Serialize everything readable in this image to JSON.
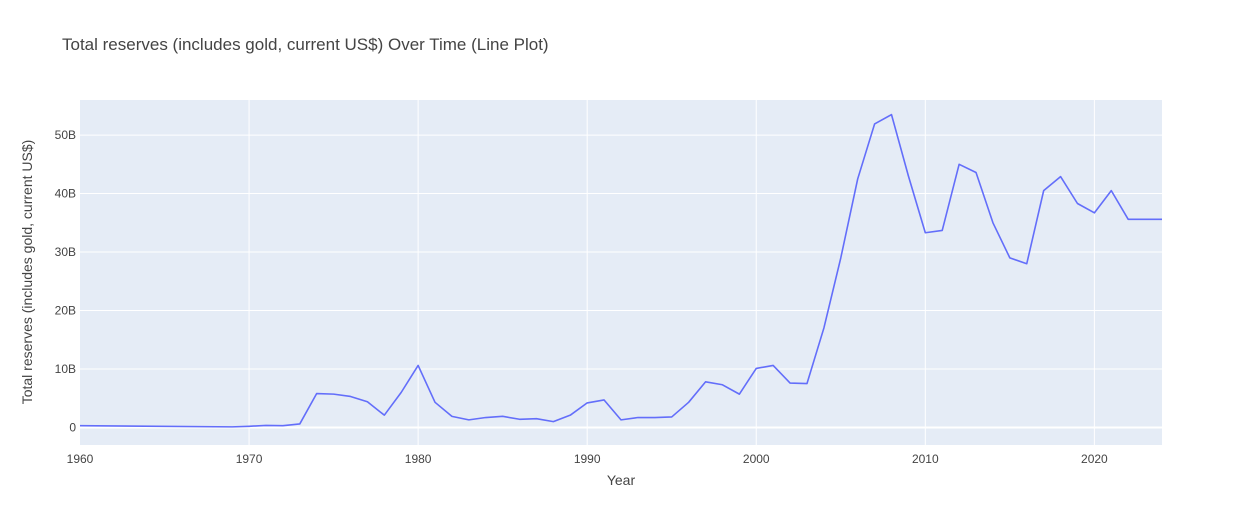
{
  "chart_data": {
    "type": "line",
    "title": "Total reserves (includes gold, current US$) Over Time (Line Plot)",
    "xlabel": "Year",
    "ylabel": "Total reserves (includes gold, current US$)",
    "xlim": [
      1960,
      2024
    ],
    "ylim": [
      -3000000000,
      56000000000
    ],
    "x_ticks": [
      1960,
      1970,
      1980,
      1990,
      2000,
      2010,
      2020
    ],
    "y_ticks": [
      0,
      10000000000,
      20000000000,
      30000000000,
      40000000000,
      50000000000
    ],
    "y_tick_labels": [
      "0",
      "10B",
      "20B",
      "30B",
      "40B",
      "50B"
    ],
    "grid": true,
    "colors": {
      "line": "#636efa",
      "plot_bg": "#e5ecf6",
      "grid": "#ffffff"
    },
    "series": [
      {
        "x": [
          1960,
          1969,
          1970,
          1971,
          1972,
          1973,
          1974,
          1975,
          1976,
          1977,
          1978,
          1979,
          1980,
          1981,
          1982,
          1983,
          1984,
          1985,
          1986,
          1987,
          1988,
          1989,
          1990,
          1991,
          1992,
          1993,
          1994,
          1995,
          1996,
          1997,
          1998,
          1999,
          2000,
          2001,
          2002,
          2003,
          2004,
          2005,
          2006,
          2007,
          2008,
          2009,
          2010,
          2011,
          2012,
          2013,
          2014,
          2015,
          2016,
          2017,
          2018,
          2019,
          2020,
          2021,
          2022,
          2023,
          2024
        ],
        "y": [
          300000000,
          100000000,
          200000000,
          350000000,
          300000000,
          600000000,
          5800000000,
          5700000000,
          5300000000,
          4400000000,
          2100000000,
          6000000000,
          10600000000,
          4300000000,
          1900000000,
          1300000000,
          1700000000,
          1900000000,
          1400000000,
          1500000000,
          1000000000,
          2100000000,
          4200000000,
          4700000000,
          1300000000,
          1700000000,
          1700000000,
          1800000000,
          4300000000,
          7800000000,
          7300000000,
          5700000000,
          10100000000,
          10600000000,
          7600000000,
          7500000000,
          17000000000,
          29000000000,
          42500000000,
          51900000000,
          53500000000,
          43000000000,
          33300000000,
          33700000000,
          45000000000,
          43600000000,
          35000000000,
          29000000000,
          28000000000,
          40500000000,
          42900000000,
          38300000000,
          36700000000,
          40500000000,
          35600000000,
          35600000000,
          35600000000
        ]
      }
    ]
  }
}
